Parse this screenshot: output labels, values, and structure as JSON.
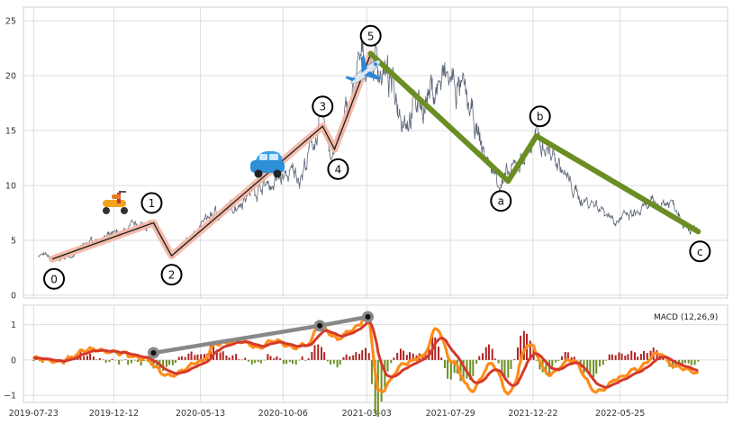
{
  "chart_data": [
    {
      "type": "line",
      "panel": "price",
      "ylim": [
        0,
        26
      ],
      "yticks": [
        "0",
        "5",
        "10",
        "15",
        "20",
        "25"
      ],
      "grid": true,
      "colors": {
        "price": "#5d6678",
        "impulse_glow": "#f3b6a4",
        "impulse_line": "#1a1a1a",
        "corrective": "#6b8e23"
      },
      "icons": [
        "scooter-icon",
        "car-icon",
        "airplane-icon"
      ],
      "price_anchors": [
        {
          "x": "2019-08-01",
          "y": 3.7
        },
        {
          "x": "2019-09-01",
          "y": 3.3
        },
        {
          "x": "2019-12-01",
          "y": 5.3
        },
        {
          "x": "2020-02-15",
          "y": 6.5
        },
        {
          "x": "2020-03-22",
          "y": 3.8
        },
        {
          "x": "2020-06-15",
          "y": 7.5
        },
        {
          "x": "2020-09-01",
          "y": 10.0
        },
        {
          "x": "2020-11-01",
          "y": 11.0
        },
        {
          "x": "2020-12-15",
          "y": 15.2
        },
        {
          "x": "2021-01-01",
          "y": 13.5
        },
        {
          "x": "2021-03-10",
          "y": 21.8
        },
        {
          "x": "2021-05-15",
          "y": 17.0
        },
        {
          "x": "2021-07-25",
          "y": 19.5
        },
        {
          "x": "2021-11-01",
          "y": 10.5
        },
        {
          "x": "2021-12-28",
          "y": 14.0
        },
        {
          "x": "2022-04-01",
          "y": 8.5
        },
        {
          "x": "2022-05-25",
          "y": 7.0
        },
        {
          "x": "2022-08-20",
          "y": 8.5
        },
        {
          "x": "2022-10-10",
          "y": 5.8
        }
      ],
      "impulse_wave": [
        {
          "label": "0",
          "x": "2019-08-25",
          "y": 3.3
        },
        {
          "label": "1",
          "x": "2020-02-20",
          "y": 6.6
        },
        {
          "label": "2",
          "x": "2020-03-23",
          "y": 3.6
        },
        {
          "label": "3",
          "x": "2020-12-15",
          "y": 15.4
        },
        {
          "label": "4",
          "x": "2021-01-05",
          "y": 13.3
        },
        {
          "label": "5",
          "x": "2021-03-10",
          "y": 22.0
        }
      ],
      "corrective_wave": [
        {
          "label": "5",
          "x": "2021-03-10",
          "y": 22.0
        },
        {
          "label": "a",
          "x": "2021-11-08",
          "y": 10.4
        },
        {
          "label": "b",
          "x": "2021-12-28",
          "y": 14.5
        },
        {
          "label": "c",
          "x": "2022-10-10",
          "y": 5.8
        }
      ]
    },
    {
      "type": "line",
      "panel": "macd",
      "legend_text": "MACD (12,26,9)",
      "ylim": [
        -1.1,
        1.45
      ],
      "yticks": [
        "−1",
        "0",
        "1"
      ],
      "xticks": [
        "2019-07-23",
        "2019-12-12",
        "2020-05-13",
        "2020-10-06",
        "2021-03-03",
        "2021-07-29",
        "2021-12-22",
        "2022-05-25"
      ],
      "grid": true,
      "colors": {
        "macd": "#ff8c1a",
        "signal": "#d43a2a",
        "hist_pos": "#b22222",
        "hist_neg": "#6b8e23",
        "divergence": "#888888"
      },
      "macd_anchors": [
        {
          "x": "2019-07-23",
          "y": 0.05
        },
        {
          "x": "2019-09-05",
          "y": -0.05
        },
        {
          "x": "2019-11-01",
          "y": 0.3
        },
        {
          "x": "2019-12-20",
          "y": 0.2
        },
        {
          "x": "2020-02-01",
          "y": 0.05
        },
        {
          "x": "2020-03-20",
          "y": -0.45
        },
        {
          "x": "2020-05-15",
          "y": -0.05
        },
        {
          "x": "2020-06-10",
          "y": 0.45
        },
        {
          "x": "2020-07-20",
          "y": 0.55
        },
        {
          "x": "2020-08-25",
          "y": 0.35
        },
        {
          "x": "2020-09-20",
          "y": 0.55
        },
        {
          "x": "2020-10-25",
          "y": 0.35
        },
        {
          "x": "2020-11-20",
          "y": 0.45
        },
        {
          "x": "2020-12-10",
          "y": 1.0
        },
        {
          "x": "2021-01-10",
          "y": 0.6
        },
        {
          "x": "2021-02-10",
          "y": 0.9
        },
        {
          "x": "2021-03-05",
          "y": 1.25
        },
        {
          "x": "2021-03-25",
          "y": -0.9
        },
        {
          "x": "2021-05-10",
          "y": -0.1
        },
        {
          "x": "2021-06-10",
          "y": 0.1
        },
        {
          "x": "2021-07-05",
          "y": 0.9
        },
        {
          "x": "2021-08-01",
          "y": -0.05
        },
        {
          "x": "2021-09-05",
          "y": -0.85
        },
        {
          "x": "2021-10-10",
          "y": -0.1
        },
        {
          "x": "2021-11-10",
          "y": -0.95
        },
        {
          "x": "2021-12-15",
          "y": 0.45
        },
        {
          "x": "2022-01-20",
          "y": -0.4
        },
        {
          "x": "2022-03-01",
          "y": 0.0
        },
        {
          "x": "2022-04-15",
          "y": -0.9
        },
        {
          "x": "2022-05-25",
          "y": -0.5
        },
        {
          "x": "2022-06-25",
          "y": -0.25
        },
        {
          "x": "2022-08-01",
          "y": 0.2
        },
        {
          "x": "2022-09-01",
          "y": -0.2
        },
        {
          "x": "2022-10-10",
          "y": -0.35
        }
      ],
      "divergence_points": [
        {
          "x": "2020-02-20",
          "y": 0.2
        },
        {
          "x": "2020-12-10",
          "y": 0.97
        },
        {
          "x": "2021-03-05",
          "y": 1.22
        }
      ]
    }
  ]
}
